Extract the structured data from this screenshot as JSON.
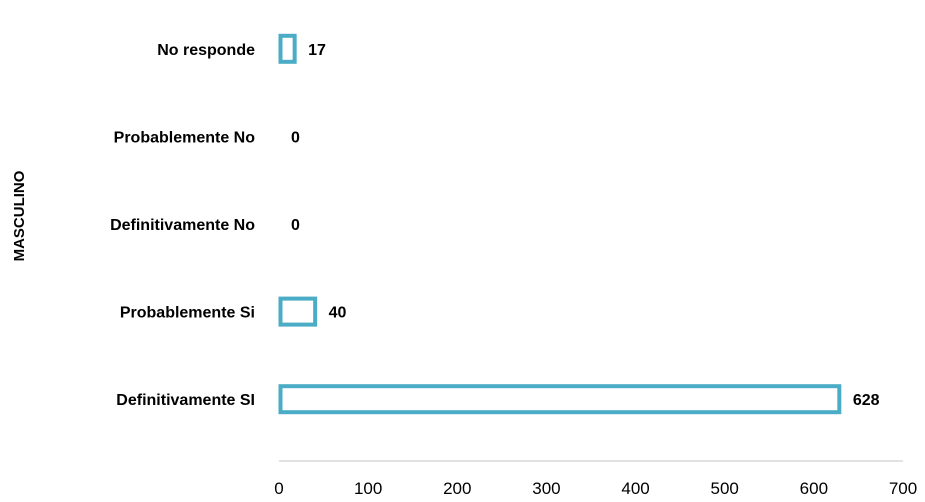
{
  "chart_data": {
    "type": "bar",
    "orientation": "horizontal",
    "group_label": "MASCULINO",
    "categories": [
      "No responde",
      "Probablemente No",
      "Definitivamente No",
      "Probablemente Si",
      "Definitivamente SI"
    ],
    "values": [
      17,
      0,
      0,
      40,
      628
    ],
    "xlim": [
      0,
      700
    ],
    "xticks": [
      "0",
      "100",
      "200",
      "300",
      "400",
      "500",
      "600",
      "700"
    ],
    "grid": false,
    "legend": "none",
    "colors": {
      "bar_outline": "#4BACC6",
      "bar_fill": "#ffffff",
      "axis": "#d9d9d9"
    }
  }
}
